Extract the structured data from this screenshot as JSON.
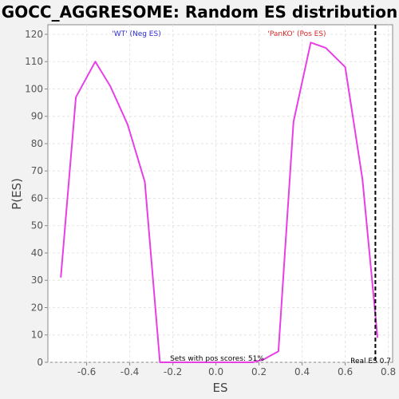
{
  "chart_data": {
    "type": "line",
    "title": "GOCC_AGGRESOME: Random ES distribution",
    "xlabel": "ES",
    "ylabel": "P(ES)",
    "xlim": [
      -0.78,
      0.82
    ],
    "ylim": [
      0,
      123.5
    ],
    "x_ticks": [
      -0.6,
      -0.4,
      -0.2,
      0.0,
      0.2,
      0.4,
      0.6,
      0.8
    ],
    "x_tick_labels": [
      "-0.6",
      "-0.4",
      "-0.2",
      "0.0",
      "0.2",
      "0.4",
      "0.6",
      "0.8"
    ],
    "y_ticks": [
      0,
      10,
      20,
      30,
      40,
      50,
      60,
      70,
      80,
      90,
      100,
      110,
      120
    ],
    "y_tick_labels": [
      "0",
      "10",
      "20",
      "30",
      "40",
      "50",
      "60",
      "70",
      "80",
      "90",
      "100",
      "110",
      "120"
    ],
    "grid": true,
    "series": [
      {
        "color": "#e83ee8",
        "x": [
          -0.72,
          -0.65,
          -0.56,
          -0.49,
          -0.41,
          -0.33,
          -0.26,
          -0.19,
          -0.12,
          -0.05,
          0.03,
          0.1,
          0.17,
          0.22,
          0.29,
          0.36,
          0.44,
          0.51,
          0.6,
          0.68,
          0.75
        ],
        "y": [
          31,
          97,
          110,
          101,
          87,
          66,
          0,
          0,
          0,
          0,
          0,
          0,
          0,
          1,
          4,
          88,
          117,
          115,
          108,
          67,
          9
        ]
      }
    ],
    "real_es": 0.74,
    "real_es_line_color": "#000000",
    "annotations": {
      "neg": {
        "text": "'WT' (Neg ES)",
        "color": "#2b2bd6"
      },
      "pos": {
        "text": "'PanKO' (Pos ES)",
        "color": "#d62b2b"
      },
      "pos_scores": {
        "text": "Sets with pos scores: 51%",
        "color": "#000000"
      },
      "real_es": {
        "text": "Real ES 0.7",
        "color": "#000000"
      }
    }
  }
}
